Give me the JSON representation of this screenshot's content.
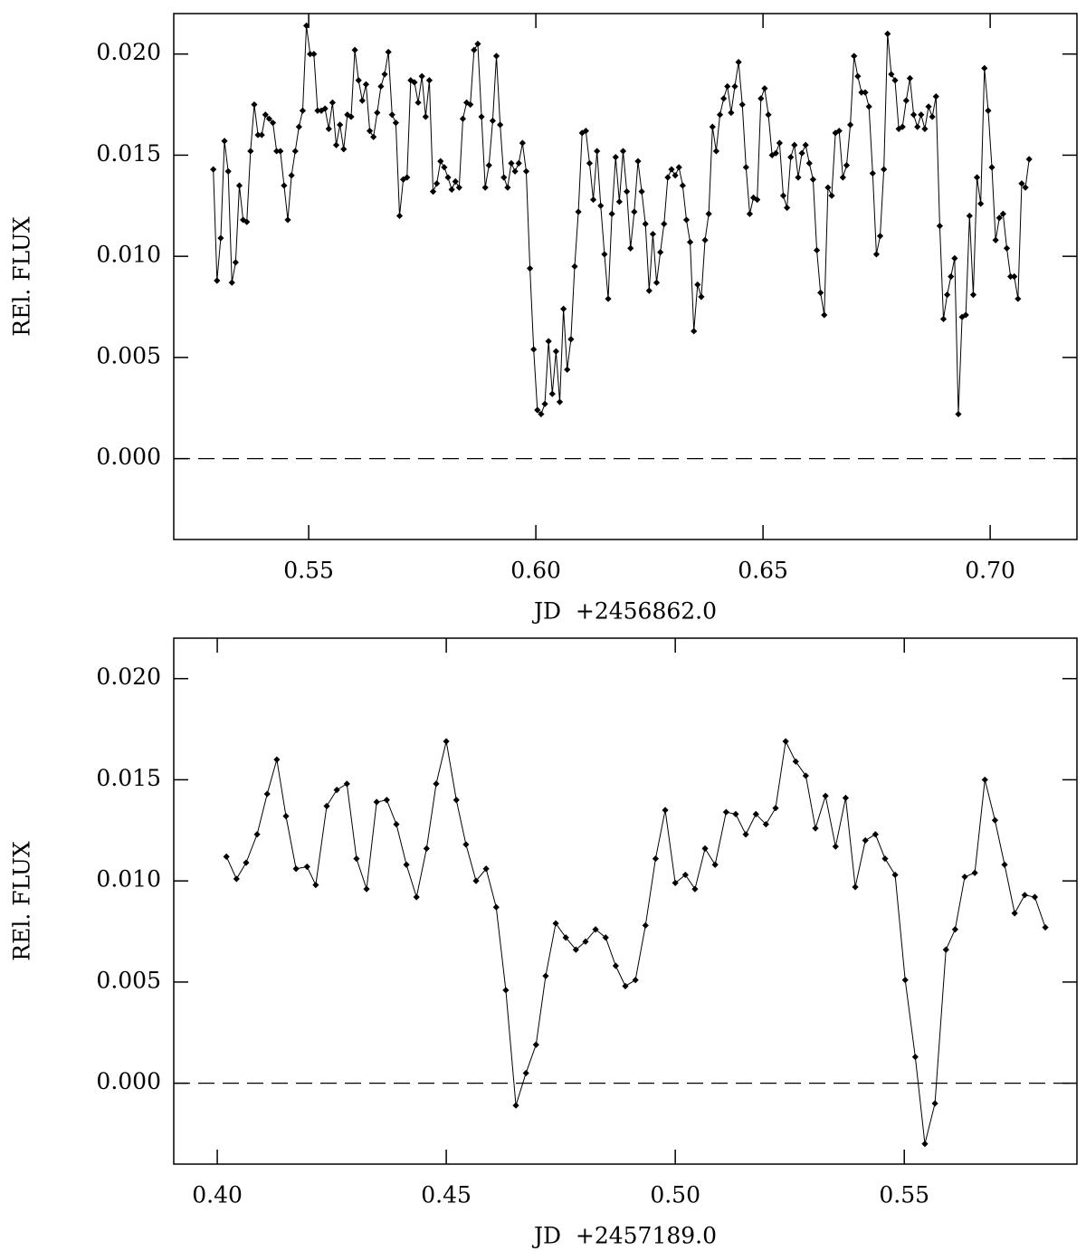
{
  "chart_data": [
    {
      "type": "line",
      "xlabel": "JD  +2456862.0",
      "ylabel": "REl. FLUX",
      "color": "#000000",
      "reference_line": 0,
      "xlim": [
        0.5203,
        0.7191
      ],
      "ylim": [
        -0.004,
        0.022
      ],
      "xticks": [
        0.55,
        {
          "value": 0.6,
          "label": "0.60"
        },
        0.65,
        {
          "value": 0.7,
          "label": "0.70"
        }
      ],
      "yticks": [
        {
          "value": 0,
          "label": "0.000"
        },
        0.005,
        {
          "value": 0.01,
          "label": "0.010"
        },
        0.015,
        {
          "value": 0.02,
          "label": "0.020"
        }
      ],
      "x": [
        0.529,
        0.52982,
        0.53064,
        0.53146,
        0.53228,
        0.5331,
        0.53392,
        0.53474,
        0.53556,
        0.53638,
        0.5372,
        0.53802,
        0.53884,
        0.53966,
        0.54048,
        0.5413,
        0.54212,
        0.54294,
        0.54376,
        0.54458,
        0.5454,
        0.54622,
        0.54704,
        0.54786,
        0.54868,
        0.5495,
        0.55032,
        0.55114,
        0.55196,
        0.55278,
        0.5536,
        0.55442,
        0.55524,
        0.55606,
        0.55688,
        0.5577,
        0.55852,
        0.55934,
        0.56016,
        0.56098,
        0.5618,
        0.56262,
        0.56344,
        0.56426,
        0.56508,
        0.5659,
        0.56672,
        0.56754,
        0.56836,
        0.56918,
        0.57,
        0.57082,
        0.57164,
        0.57246,
        0.57328,
        0.5741,
        0.57492,
        0.57574,
        0.57656,
        0.57738,
        0.5782,
        0.57902,
        0.57984,
        0.58066,
        0.58148,
        0.5823,
        0.58312,
        0.58394,
        0.58476,
        0.58558,
        0.5864,
        0.58722,
        0.58804,
        0.58886,
        0.58968,
        0.5905,
        0.59132,
        0.59214,
        0.59296,
        0.59378,
        0.5946,
        0.59542,
        0.59624,
        0.59706,
        0.59788,
        0.5987,
        0.59952,
        0.60034,
        0.60116,
        0.60198,
        0.6028,
        0.60362,
        0.60444,
        0.60526,
        0.60608,
        0.6069,
        0.60772,
        0.60854,
        0.60936,
        0.61018,
        0.611,
        0.61182,
        0.61264,
        0.61346,
        0.61428,
        0.6151,
        0.61592,
        0.61674,
        0.61756,
        0.61838,
        0.6192,
        0.62002,
        0.62084,
        0.62166,
        0.62248,
        0.6233,
        0.62412,
        0.62494,
        0.62576,
        0.62658,
        0.6274,
        0.62822,
        0.62904,
        0.62986,
        0.63068,
        0.6315,
        0.63232,
        0.63314,
        0.63396,
        0.63478,
        0.6356,
        0.63642,
        0.63724,
        0.63806,
        0.63888,
        0.6397,
        0.64052,
        0.64134,
        0.64216,
        0.64298,
        0.6438,
        0.64462,
        0.64544,
        0.64626,
        0.64708,
        0.6479,
        0.64872,
        0.64954,
        0.65036,
        0.65118,
        0.652,
        0.65282,
        0.65364,
        0.65446,
        0.65528,
        0.6561,
        0.65692,
        0.65774,
        0.65856,
        0.65938,
        0.6602,
        0.66102,
        0.66184,
        0.66266,
        0.66348,
        0.6643,
        0.66512,
        0.66594,
        0.66676,
        0.66758,
        0.6684,
        0.66922,
        0.67004,
        0.67086,
        0.67168,
        0.6725,
        0.67332,
        0.67414,
        0.67496,
        0.67578,
        0.6766,
        0.67742,
        0.67824,
        0.67906,
        0.67988,
        0.6807,
        0.68152,
        0.68234,
        0.68316,
        0.68398,
        0.6848,
        0.68562,
        0.68644,
        0.68726,
        0.68808,
        0.6889,
        0.68972,
        0.69054,
        0.69136,
        0.69218,
        0.693,
        0.69382,
        0.69464,
        0.69546,
        0.69628,
        0.6971,
        0.69792,
        0.69874,
        0.69956,
        0.70038,
        0.7012,
        0.70202,
        0.70284,
        0.70366,
        0.70448,
        0.7053,
        0.70612,
        0.70694,
        0.70776,
        0.70858
      ],
      "values": [
        0.0143,
        0.0088,
        0.0109,
        0.0157,
        0.0142,
        0.0087,
        0.0097,
        0.0135,
        0.0118,
        0.0117,
        0.0152,
        0.0175,
        0.016,
        0.016,
        0.017,
        0.0168,
        0.0166,
        0.0152,
        0.0152,
        0.0135,
        0.0118,
        0.014,
        0.0152,
        0.0164,
        0.0172,
        0.0214,
        0.02,
        0.02,
        0.0172,
        0.0172,
        0.0173,
        0.0163,
        0.0176,
        0.0155,
        0.0165,
        0.0153,
        0.017,
        0.0169,
        0.0202,
        0.0187,
        0.0177,
        0.0185,
        0.0162,
        0.0159,
        0.0171,
        0.0184,
        0.019,
        0.0201,
        0.017,
        0.0166,
        0.012,
        0.0138,
        0.0139,
        0.0187,
        0.0186,
        0.0176,
        0.0189,
        0.0169,
        0.0187,
        0.0132,
        0.0136,
        0.0147,
        0.0144,
        0.0139,
        0.0133,
        0.0137,
        0.0134,
        0.0168,
        0.0176,
        0.0175,
        0.0202,
        0.0205,
        0.0169,
        0.0134,
        0.0145,
        0.0167,
        0.0199,
        0.0165,
        0.0139,
        0.0134,
        0.0146,
        0.0142,
        0.0146,
        0.0156,
        0.0142,
        0.0094,
        0.0054,
        0.0024,
        0.0022,
        0.0027,
        0.0058,
        0.0032,
        0.0053,
        0.0028,
        0.0074,
        0.0044,
        0.0059,
        0.0095,
        0.0122,
        0.0161,
        0.0162,
        0.0146,
        0.0128,
        0.0152,
        0.0125,
        0.0101,
        0.0079,
        0.0121,
        0.0149,
        0.0127,
        0.0152,
        0.0132,
        0.0104,
        0.0122,
        0.0147,
        0.0132,
        0.0116,
        0.0083,
        0.0111,
        0.0087,
        0.0102,
        0.0116,
        0.0139,
        0.0143,
        0.014,
        0.0144,
        0.0135,
        0.0118,
        0.0107,
        0.0063,
        0.0086,
        0.008,
        0.0108,
        0.0121,
        0.0164,
        0.0152,
        0.017,
        0.0178,
        0.0184,
        0.0171,
        0.0184,
        0.0196,
        0.0175,
        0.0144,
        0.0121,
        0.0129,
        0.0128,
        0.0178,
        0.0183,
        0.017,
        0.015,
        0.0151,
        0.0156,
        0.013,
        0.0124,
        0.0149,
        0.0155,
        0.0139,
        0.0151,
        0.0155,
        0.0146,
        0.0138,
        0.0103,
        0.0082,
        0.0071,
        0.0134,
        0.013,
        0.0161,
        0.0162,
        0.0139,
        0.0145,
        0.0165,
        0.0199,
        0.0189,
        0.0181,
        0.0181,
        0.0174,
        0.0141,
        0.0101,
        0.011,
        0.0143,
        0.021,
        0.019,
        0.0187,
        0.0163,
        0.0164,
        0.0177,
        0.0188,
        0.017,
        0.0164,
        0.017,
        0.0163,
        0.0174,
        0.0169,
        0.0179,
        0.0115,
        0.0069,
        0.0081,
        0.009,
        0.0099,
        0.0022,
        0.007,
        0.0071,
        0.012,
        0.0081,
        0.0139,
        0.0126,
        0.0193,
        0.0172,
        0.0144,
        0.0108,
        0.0119,
        0.0121,
        0.0104,
        0.009,
        0.009,
        0.0079,
        0.0136,
        0.0134,
        0.0148
      ]
    },
    {
      "type": "line",
      "xlabel": "JD  +2457189.0",
      "ylabel": "REl. FLUX",
      "color": "#000000",
      "reference_line": 0,
      "xlim": [
        0.3905,
        0.5877
      ],
      "ylim": [
        -0.004,
        0.022
      ],
      "xticks": [
        {
          "value": 0.4,
          "label": "0.40"
        },
        0.45,
        {
          "value": 0.5,
          "label": "0.50"
        },
        0.55
      ],
      "yticks": [
        {
          "value": 0,
          "label": "0.000"
        },
        0.005,
        {
          "value": 0.01,
          "label": "0.010"
        },
        0.015,
        {
          "value": 0.02,
          "label": "0.020"
        }
      ],
      "x": [
        0.402,
        0.4042,
        0.4063,
        0.4087,
        0.4109,
        0.413,
        0.415,
        0.4172,
        0.4196,
        0.4215,
        0.4239,
        0.4261,
        0.4283,
        0.4304,
        0.4326,
        0.4348,
        0.437,
        0.4391,
        0.4413,
        0.4435,
        0.4457,
        0.4478,
        0.45,
        0.4522,
        0.4543,
        0.4565,
        0.4587,
        0.4609,
        0.463,
        0.4652,
        0.4674,
        0.4696,
        0.4717,
        0.4739,
        0.4761,
        0.4783,
        0.4804,
        0.4826,
        0.4848,
        0.487,
        0.4891,
        0.4913,
        0.4935,
        0.4957,
        0.4978,
        0.5,
        0.5022,
        0.5043,
        0.5065,
        0.5087,
        0.5111,
        0.5132,
        0.5154,
        0.5176,
        0.5198,
        0.5219,
        0.5241,
        0.5263,
        0.5285,
        0.5306,
        0.5328,
        0.535,
        0.5372,
        0.5393,
        0.5415,
        0.5437,
        0.5458,
        0.548,
        0.5502,
        0.5524,
        0.5545,
        0.5567,
        0.5591,
        0.5611,
        0.5632,
        0.5654,
        0.5676,
        0.5698,
        0.5719,
        0.5741,
        0.5763,
        0.5785,
        0.5808
      ],
      "values": [
        0.0112,
        0.0101,
        0.0109,
        0.0123,
        0.0143,
        0.016,
        0.0132,
        0.0106,
        0.0107,
        0.0098,
        0.0137,
        0.0145,
        0.0148,
        0.0111,
        0.0096,
        0.0139,
        0.014,
        0.0128,
        0.0108,
        0.0092,
        0.0116,
        0.0148,
        0.0169,
        0.014,
        0.0118,
        0.01,
        0.0106,
        0.0087,
        0.0046,
        -0.0011,
        0.0005,
        0.0019,
        0.0053,
        0.0079,
        0.0072,
        0.0066,
        0.007,
        0.0076,
        0.0072,
        0.0058,
        0.0048,
        0.0051,
        0.0078,
        0.0111,
        0.0135,
        0.0099,
        0.0103,
        0.0096,
        0.0116,
        0.0108,
        0.0134,
        0.0133,
        0.0123,
        0.0133,
        0.0128,
        0.0136,
        0.0169,
        0.0159,
        0.0152,
        0.0126,
        0.0142,
        0.0117,
        0.0141,
        0.0097,
        0.012,
        0.0123,
        0.0111,
        0.0103,
        0.0051,
        0.0013,
        -0.003,
        -0.001,
        0.0066,
        0.0076,
        0.0102,
        0.0104,
        0.015,
        0.013,
        0.0108,
        0.0084,
        0.0093,
        0.0092,
        0.0077
      ]
    }
  ]
}
